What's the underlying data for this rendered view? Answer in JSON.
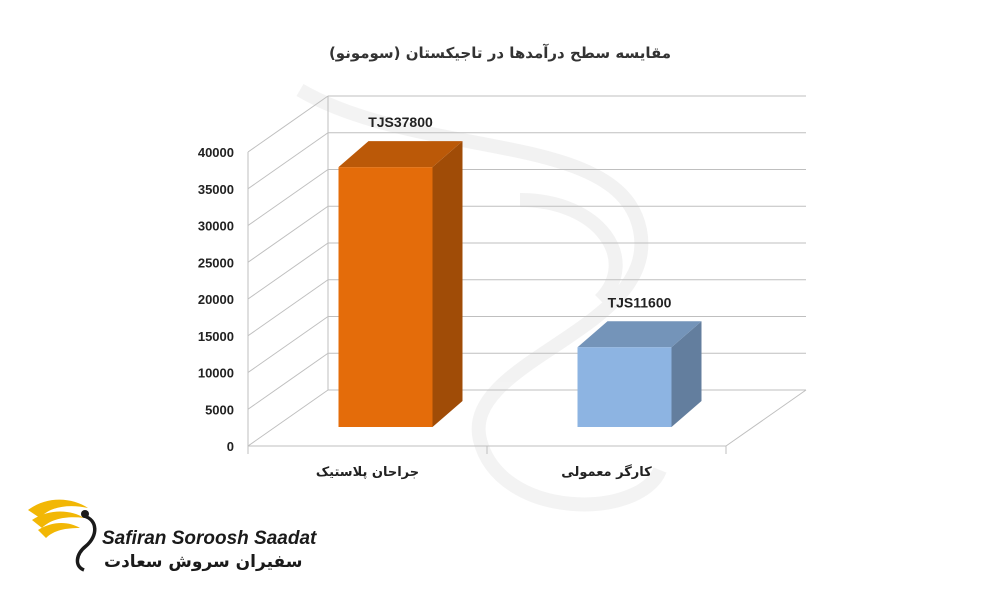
{
  "chart_data": {
    "type": "bar",
    "title": "مقایسه سطح درآمدها در تاجیکستان (سومونو)",
    "categories": [
      "جراحان پلاستیک",
      "کارگر معمولی"
    ],
    "values": [
      37800,
      11600
    ],
    "data_labels": [
      "TJS37800",
      "TJS11600"
    ],
    "bar_colors": [
      "#E46C0A",
      "#8DB4E2"
    ],
    "ylim": [
      0,
      40000
    ],
    "yticks": [
      0,
      5000,
      10000,
      15000,
      20000,
      25000,
      30000,
      35000,
      40000
    ],
    "grid": true,
    "style": "3d-column",
    "legend": "none"
  },
  "logo": {
    "name_en": "Safiran Soroosh Saadat",
    "name_fa": "سفیران سروش سعادت",
    "accent_color": "#F2B705"
  }
}
